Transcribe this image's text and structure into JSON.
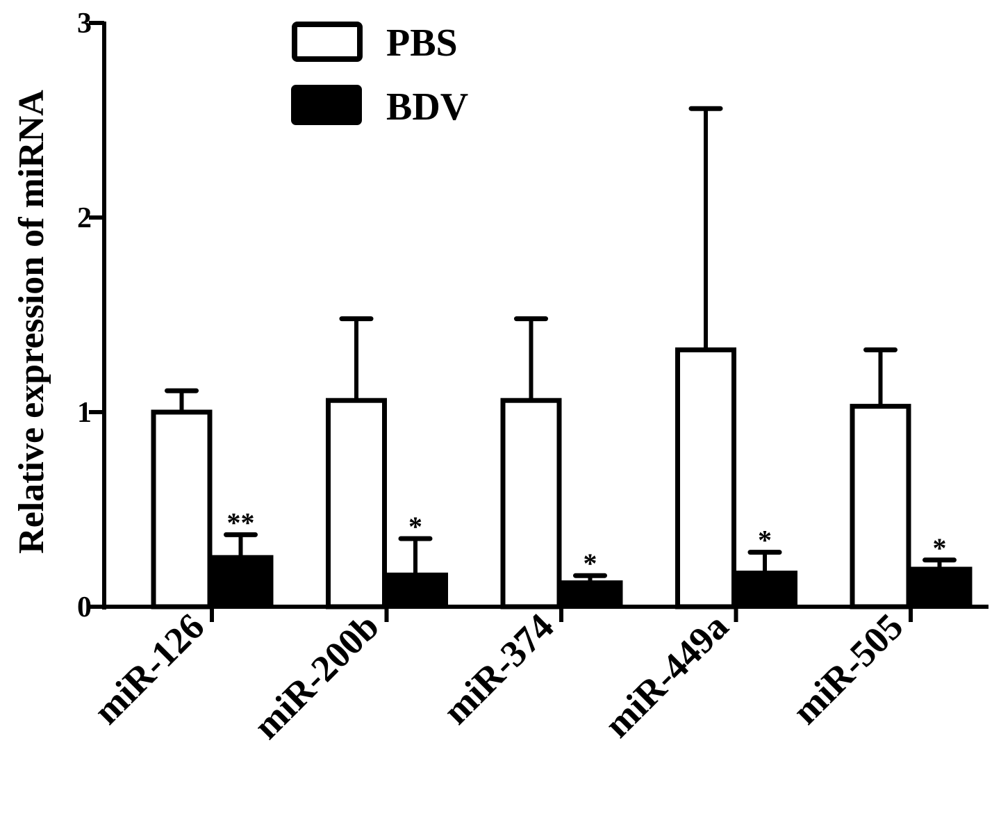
{
  "chart_data": {
    "type": "bar",
    "title": "",
    "xlabel": "",
    "ylabel": "Relative expression of miRNA",
    "ylim": [
      0,
      3
    ],
    "yticks": [
      "0",
      "1",
      "2",
      "3"
    ],
    "grid": false,
    "legend_position": "top-left",
    "categories": [
      "miR-126",
      "miR-200b",
      "miR-374",
      "miR-449a",
      "miR-505"
    ],
    "series": [
      {
        "name": "PBS",
        "style": "hollow",
        "values": [
          1.0,
          1.06,
          1.06,
          1.32,
          1.03
        ],
        "error": [
          0.11,
          0.42,
          0.42,
          1.24,
          0.29
        ]
      },
      {
        "name": "BDV",
        "style": "filled",
        "values": [
          0.26,
          0.17,
          0.13,
          0.18,
          0.2
        ],
        "error": [
          0.11,
          0.18,
          0.03,
          0.1,
          0.04
        ]
      }
    ],
    "annotations": [
      "**",
      "*",
      "*",
      "*",
      "*"
    ],
    "colors": {
      "fill": "#000000",
      "hollow": "#ffffff",
      "stroke": "#000000"
    }
  }
}
